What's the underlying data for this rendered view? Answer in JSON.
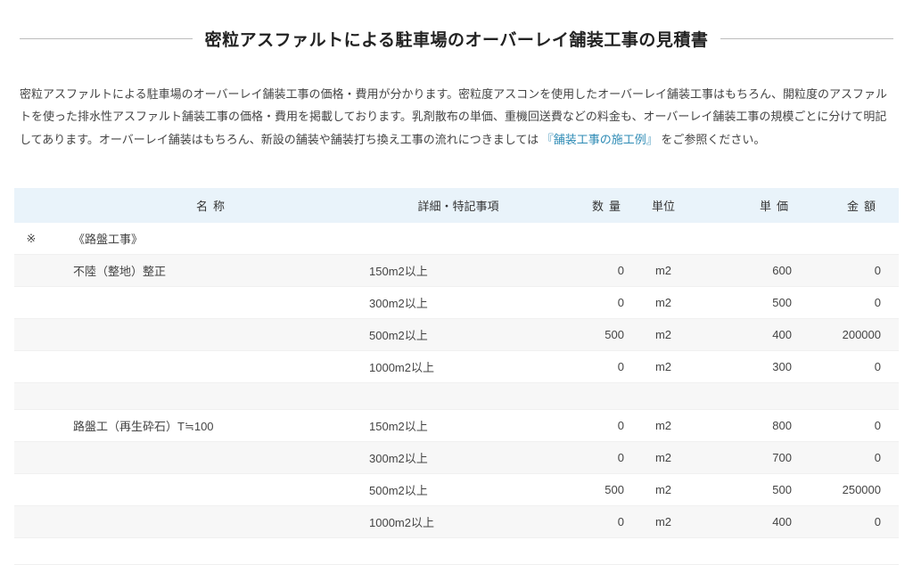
{
  "title": "密粒アスファルトによる駐車場のオーバーレイ舗装工事の見積書",
  "intro": {
    "part1": "密粒アスファルトによる駐車場のオーバーレイ舗装工事の価格・費用が分かります。密粒度アスコンを使用したオーバーレイ舗装工事はもちろん、開粒度のアスファルトを使った排水性アスファルト舗装工事の価格・費用を掲載しております。乳剤散布の単価、重機回送費などの料金も、オーバーレイ舗装工事の規模ごとに分けて明記してあります。オーバーレイ舗装はもちろん、新設の舗装や舗装打ち換え工事の流れにつきましては",
    "link": "『舗装工事の施工例』",
    "part2": "をご参照ください。"
  },
  "headers": {
    "name": "名称",
    "detail": "詳細・特記事項",
    "qty": "数量",
    "unit": "単位",
    "price": "単価",
    "amount": "金額"
  },
  "mark": "※",
  "rows": [
    {
      "type": "section",
      "name": "《路盤工事》"
    },
    {
      "type": "data",
      "name": "不陸（整地）整正",
      "detail": "150m2以上",
      "qty": "0",
      "unit": "m2",
      "price": "600",
      "amount": "0"
    },
    {
      "type": "data",
      "name": "",
      "detail": "300m2以上",
      "qty": "0",
      "unit": "m2",
      "price": "500",
      "amount": "0"
    },
    {
      "type": "data",
      "name": "",
      "detail": "500m2以上",
      "qty": "500",
      "unit": "m2",
      "price": "400",
      "amount": "200000"
    },
    {
      "type": "data",
      "name": "",
      "detail": "1000m2以上",
      "qty": "0",
      "unit": "m2",
      "price": "300",
      "amount": "0"
    },
    {
      "type": "empty"
    },
    {
      "type": "data",
      "name": "路盤工（再生砕石）T≒100",
      "detail": "150m2以上",
      "qty": "0",
      "unit": "m2",
      "price": "800",
      "amount": "0"
    },
    {
      "type": "data",
      "name": "",
      "detail": "300m2以上",
      "qty": "0",
      "unit": "m2",
      "price": "700",
      "amount": "0"
    },
    {
      "type": "data",
      "name": "",
      "detail": "500m2以上",
      "qty": "500",
      "unit": "m2",
      "price": "500",
      "amount": "250000"
    },
    {
      "type": "data",
      "name": "",
      "detail": "1000m2以上",
      "qty": "0",
      "unit": "m2",
      "price": "400",
      "amount": "0"
    },
    {
      "type": "empty"
    }
  ]
}
